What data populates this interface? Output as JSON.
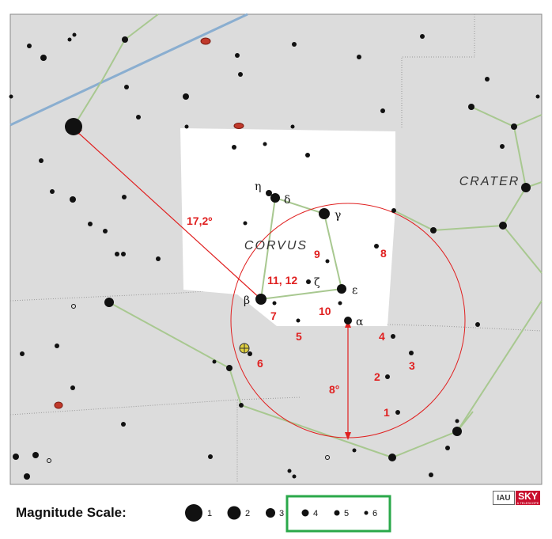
{
  "constellation_label": "CORVUS",
  "neighbor_label": "CRATER",
  "star_labels": {
    "alpha": "α",
    "beta": "β",
    "gamma": "γ",
    "delta": "δ",
    "epsilon": "ε",
    "zeta": "ζ",
    "eta": "η"
  },
  "distance_labels": {
    "angular": "17,2º",
    "radius": "8°"
  },
  "object_numbers": [
    "1",
    "2",
    "3",
    "4",
    "5",
    "6",
    "7",
    "8",
    "9",
    "10",
    "11, 12"
  ],
  "legend": {
    "title": "Magnitude Scale:",
    "items": [
      "1",
      "2",
      "3",
      "4",
      "5",
      "6"
    ]
  },
  "logo": {
    "left": "IAU",
    "right": "SKY",
    "sub": "& TELESCOPE"
  },
  "colors": {
    "background": "#dcdcdc",
    "constellation_area": "#ffffff",
    "lines": "#a8c890",
    "ecliptic": "#8aaed0",
    "annotation": "#e02020",
    "highlight_box": "#2aa84a"
  }
}
